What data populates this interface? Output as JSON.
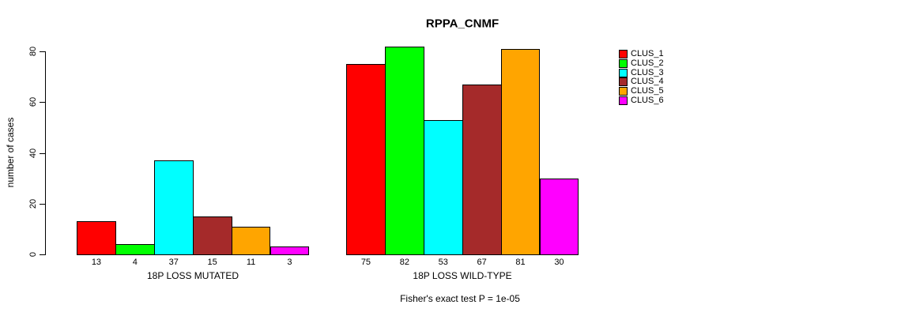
{
  "title": "RPPA_CNMF",
  "ylabel": "number of cases",
  "footer": "Fisher's exact test P = 1e-05",
  "chart_data": {
    "type": "bar",
    "title": "RPPA_CNMF",
    "xlabel": "",
    "ylabel": "number of cases",
    "ylim": [
      0,
      80
    ],
    "yticks": [
      0,
      20,
      40,
      60,
      80
    ],
    "grid": false,
    "legend_position": "right",
    "series": [
      "CLUS_1",
      "CLUS_2",
      "CLUS_3",
      "CLUS_4",
      "CLUS_5",
      "CLUS_6"
    ],
    "colors": [
      "#FF0000",
      "#00FF00",
      "#00FFFF",
      "#A52A2A",
      "#FFA500",
      "#FF00FF"
    ],
    "groups": [
      {
        "label": "18P LOSS MUTATED",
        "values": [
          13,
          4,
          37,
          15,
          11,
          3
        ]
      },
      {
        "label": "18P LOSS WILD-TYPE",
        "values": [
          75,
          82,
          53,
          67,
          81,
          30
        ]
      }
    ],
    "annotation": "Fisher's exact test P = 1e-05"
  }
}
